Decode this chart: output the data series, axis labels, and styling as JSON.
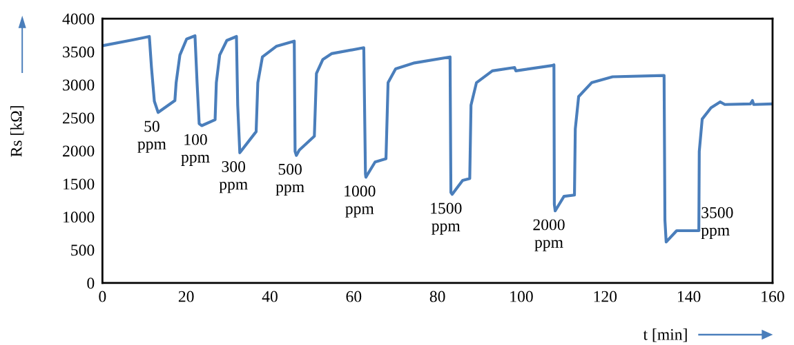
{
  "chart_data": {
    "type": "line",
    "xlabel": "t [min]",
    "ylabel": "Rs [kΩ]",
    "xlim": [
      0,
      160
    ],
    "ylim": [
      0,
      4000
    ],
    "xticks": [
      0,
      20,
      40,
      60,
      80,
      100,
      120,
      140,
      160
    ],
    "yticks": [
      0,
      500,
      1000,
      1500,
      2000,
      2500,
      3000,
      3500,
      4000
    ],
    "grid": false,
    "marker": "none",
    "line_style": "solid",
    "series": [
      {
        "color": "#4a7ebb",
        "x": [
          0,
          7.4,
          11.2,
          11.7,
          12.4,
          13.3,
          17.3,
          17.6,
          18.5,
          20.1,
          22.1,
          22.6,
          23.1,
          23.7,
          26.9,
          27.2,
          28.0,
          29.7,
          32.0,
          32.3,
          32.8,
          36.7,
          37.1,
          38.2,
          41.5,
          45.8,
          46.0,
          46.3,
          47.0,
          50.6,
          51.1,
          52.6,
          54.7,
          62.4,
          62.8,
          62.9,
          65.1,
          67.7,
          68.2,
          70.0,
          74.5,
          83.0,
          83.2,
          83.5,
          86.0,
          87.7,
          88.0,
          89.3,
          93.1,
          98.4,
          98.7,
          107.4,
          107.8,
          107.9,
          108.1,
          110.2,
          112.7,
          112.9,
          113.7,
          116.8,
          121.8,
          134.1,
          134.3,
          134.6,
          137.1,
          142.4,
          142.5,
          143.2,
          145.3,
          147.5,
          148.6,
          154.7,
          155.2,
          155.5,
          160
        ],
        "values": [
          3590,
          3680,
          3730,
          3270,
          2750,
          2580,
          2760,
          3030,
          3450,
          3690,
          3740,
          3030,
          2410,
          2380,
          2470,
          3030,
          3450,
          3670,
          3730,
          2690,
          1970,
          2290,
          3030,
          3420,
          3580,
          3660,
          1990,
          1930,
          2010,
          2220,
          3170,
          3380,
          3470,
          3560,
          1650,
          1600,
          1830,
          1880,
          3030,
          3240,
          3330,
          3420,
          1370,
          1340,
          1550,
          1580,
          2690,
          3030,
          3210,
          3260,
          3210,
          3290,
          3300,
          1190,
          1090,
          1310,
          1330,
          2330,
          2820,
          3030,
          3120,
          3140,
          950,
          620,
          790,
          790,
          1990,
          2480,
          2650,
          2740,
          2700,
          2710,
          2760,
          2700,
          2710
        ]
      }
    ],
    "annotations": [
      "50\nppm",
      "100\nppm",
      "300\nppm",
      "500\nppm",
      "1000\nppm",
      "1500\nppm",
      "2000\nppm",
      "3500\nppm"
    ]
  }
}
